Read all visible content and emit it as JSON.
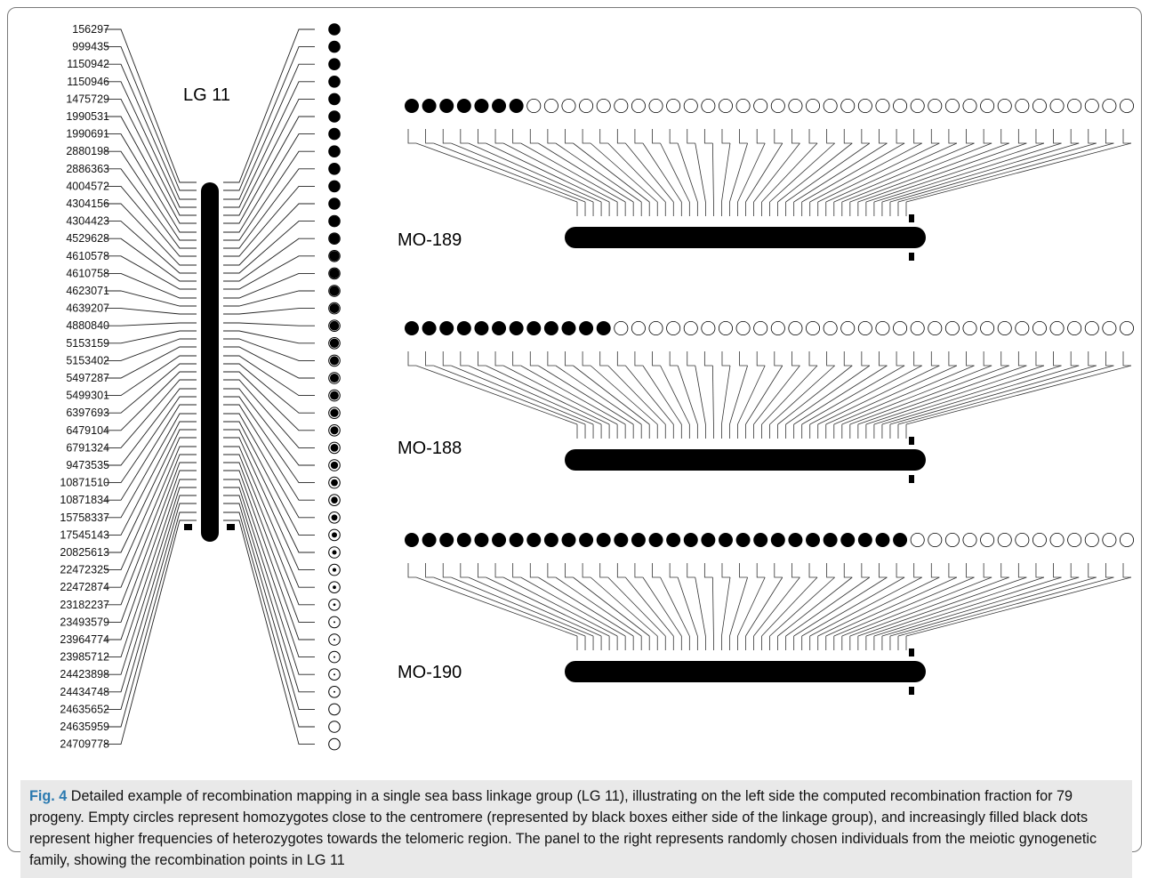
{
  "figure": {
    "lg_title": "LG 11",
    "markers": [
      "156297",
      "999435",
      "1150942",
      "1150946",
      "1475729",
      "1990531",
      "1990691",
      "2880198",
      "2886363",
      "4004572",
      "4304156",
      "4304423",
      "4529628",
      "4610578",
      "4610758",
      "4623071",
      "4639207",
      "4880840",
      "5153159",
      "5153402",
      "5497287",
      "5499301",
      "6397693",
      "6479104",
      "6791324",
      "9473535",
      "10871510",
      "10871834",
      "15758337",
      "17545143",
      "20825613",
      "22472325",
      "22472874",
      "23182237",
      "23493579",
      "23964774",
      "23985712",
      "24423898",
      "24434748",
      "24635652",
      "24635959",
      "24709778"
    ],
    "recombination_fill": [
      1,
      1,
      1,
      1,
      1,
      1,
      1,
      1,
      1,
      1,
      0.97,
      0.95,
      0.93,
      0.9,
      0.9,
      0.88,
      0.86,
      0.84,
      0.82,
      0.8,
      0.8,
      0.78,
      0.74,
      0.72,
      0.7,
      0.66,
      0.62,
      0.6,
      0.55,
      0.48,
      0.4,
      0.33,
      0.3,
      0.22,
      0.15,
      0.1,
      0.07,
      0.05,
      0.02,
      0,
      0,
      0
    ],
    "panels": [
      {
        "name": "MO-189",
        "filled_dots": 7,
        "total_dots": 42
      },
      {
        "name": "MO-188",
        "filled_dots": 12,
        "total_dots": 42
      },
      {
        "name": "MO-190",
        "filled_dots": 29,
        "total_dots": 42
      }
    ]
  },
  "caption": {
    "label": "Fig. 4",
    "text": "Detailed example of recombination mapping in a single sea bass linkage group (LG 11), illustrating on the left side the computed recombination fraction for 79 progeny. Empty circles represent homozygotes close to the centromere (represented by black boxes either side of the linkage group), and increasingly filled black dots represent higher frequencies of heterozygotes towards the telomeric region. The panel to the right represents randomly chosen individuals from the meiotic gynogenetic family, showing the recombination points in LG 11"
  }
}
